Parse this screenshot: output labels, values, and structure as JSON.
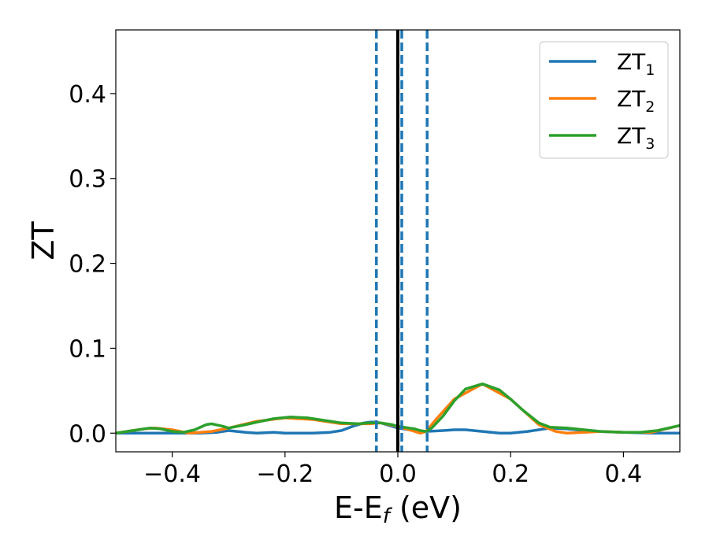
{
  "chart_data": {
    "type": "line",
    "xlabel": "E-E",
    "xlabel_sub": "f",
    "xlabel_unit": " (eV)",
    "ylabel": "ZT",
    "xlim": [
      -0.5,
      0.5
    ],
    "ylim": [
      -0.022,
      0.475
    ],
    "xticks": [
      -0.4,
      -0.2,
      0.0,
      0.2,
      0.4
    ],
    "xtick_labels": [
      "−0.4",
      "−0.2",
      "0.0",
      "0.2",
      "0.4"
    ],
    "yticks": [
      0.0,
      0.1,
      0.2,
      0.3,
      0.4
    ],
    "ytick_labels": [
      "0.0",
      "0.1",
      "0.2",
      "0.3",
      "0.4"
    ],
    "legend_position": "top-right",
    "vertical_lines": [
      {
        "x": 0.0,
        "style": "solid",
        "color": "#000000"
      },
      {
        "x": -0.038,
        "style": "dashed",
        "color": "#1f77b4"
      },
      {
        "x": 0.007,
        "style": "dashed",
        "color": "#1f77b4"
      },
      {
        "x": 0.052,
        "style": "dashed",
        "color": "#1f77b4"
      }
    ],
    "series": [
      {
        "name": "ZT",
        "sub": "1",
        "color": "#1f77b4",
        "x": [
          -0.5,
          -0.45,
          -0.4,
          -0.35,
          -0.32,
          -0.3,
          -0.27,
          -0.25,
          -0.22,
          -0.2,
          -0.18,
          -0.15,
          -0.12,
          -0.1,
          -0.08,
          -0.06,
          -0.05,
          -0.04,
          -0.03,
          -0.02,
          -0.01,
          0.0,
          0.01,
          0.02,
          0.03,
          0.05,
          0.08,
          0.1,
          0.12,
          0.15,
          0.18,
          0.2,
          0.23,
          0.27,
          0.3,
          0.35,
          0.4,
          0.45,
          0.5
        ],
        "y": [
          0.0,
          0.0,
          0.0,
          0.0,
          0.001,
          0.003,
          0.001,
          0.0,
          0.001,
          0.0,
          0.0,
          0.0,
          0.001,
          0.003,
          0.008,
          0.012,
          0.013,
          0.013,
          0.012,
          0.01,
          0.008,
          0.006,
          0.005,
          0.004,
          0.003,
          0.002,
          0.003,
          0.004,
          0.004,
          0.002,
          0.0,
          0.0,
          0.002,
          0.006,
          0.005,
          0.002,
          0.001,
          0.0,
          0.0
        ]
      },
      {
        "name": "ZT",
        "sub": "2",
        "color": "#ff7f0e",
        "x": [
          -0.5,
          -0.45,
          -0.43,
          -0.4,
          -0.37,
          -0.35,
          -0.33,
          -0.3,
          -0.25,
          -0.2,
          -0.15,
          -0.1,
          -0.05,
          -0.03,
          0.0,
          0.02,
          0.04,
          0.05,
          0.07,
          0.1,
          0.15,
          0.2,
          0.25,
          0.28,
          0.3,
          0.33,
          0.36,
          0.4,
          0.45,
          0.5
        ],
        "y": [
          0.0,
          0.005,
          0.006,
          0.004,
          0.0,
          0.001,
          0.002,
          0.006,
          0.014,
          0.018,
          0.016,
          0.011,
          0.011,
          0.012,
          0.008,
          0.004,
          0.0,
          0.002,
          0.018,
          0.04,
          0.058,
          0.04,
          0.01,
          0.002,
          0.0,
          0.001,
          0.002,
          0.001,
          0.001,
          0.009
        ]
      },
      {
        "name": "ZT",
        "sub": "3",
        "color": "#2ca02c",
        "x": [
          -0.5,
          -0.47,
          -0.44,
          -0.42,
          -0.4,
          -0.38,
          -0.36,
          -0.34,
          -0.33,
          -0.31,
          -0.3,
          -0.27,
          -0.25,
          -0.22,
          -0.19,
          -0.16,
          -0.13,
          -0.1,
          -0.07,
          -0.05,
          -0.03,
          -0.01,
          0.0,
          0.02,
          0.03,
          0.04,
          0.05,
          0.06,
          0.08,
          0.1,
          0.12,
          0.15,
          0.18,
          0.2,
          0.22,
          0.25,
          0.27,
          0.3,
          0.33,
          0.36,
          0.4,
          0.43,
          0.46,
          0.5
        ],
        "y": [
          0.0,
          0.003,
          0.006,
          0.005,
          0.002,
          0.001,
          0.004,
          0.01,
          0.011,
          0.008,
          0.006,
          0.01,
          0.013,
          0.017,
          0.019,
          0.018,
          0.015,
          0.012,
          0.011,
          0.012,
          0.012,
          0.01,
          0.008,
          0.006,
          0.005,
          0.003,
          0.002,
          0.006,
          0.02,
          0.038,
          0.052,
          0.058,
          0.051,
          0.04,
          0.028,
          0.012,
          0.007,
          0.006,
          0.004,
          0.002,
          0.001,
          0.001,
          0.003,
          0.009
        ]
      }
    ]
  }
}
